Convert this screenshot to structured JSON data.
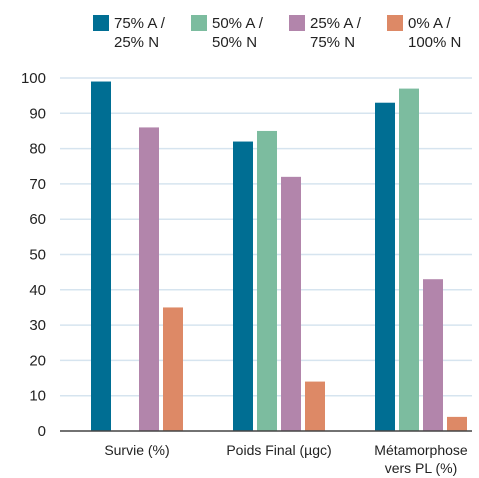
{
  "chart_data": {
    "type": "bar",
    "title": "",
    "xlabel": "",
    "ylabel": "",
    "ylim": [
      0,
      100
    ],
    "yticks": [
      0,
      10,
      20,
      30,
      40,
      50,
      60,
      70,
      80,
      90,
      100
    ],
    "grid": "horizontal",
    "legend_position": "top",
    "categories": [
      [
        "Survie (%)"
      ],
      [
        "Poids Final (µgc)"
      ],
      [
        "Métamorphose",
        "vers PL (%)"
      ]
    ],
    "series": [
      {
        "name": [
          "75% A /",
          "25% N"
        ],
        "color": "#006e93",
        "values": [
          99,
          82,
          93
        ]
      },
      {
        "name": [
          "50% A /",
          "50% N"
        ],
        "color": "#7cbc9f",
        "values": [
          null,
          85,
          97
        ]
      },
      {
        "name": [
          "25% A /",
          "75% N"
        ],
        "color": "#b285ab",
        "values": [
          86,
          72,
          43
        ]
      },
      {
        "name": [
          "0% A /",
          "100% N"
        ],
        "color": "#dd8966",
        "values": [
          35,
          14,
          4
        ]
      }
    ]
  },
  "colors": {
    "background": "#ffffff",
    "grid": "#d6e4ef",
    "axis": "#444444"
  }
}
